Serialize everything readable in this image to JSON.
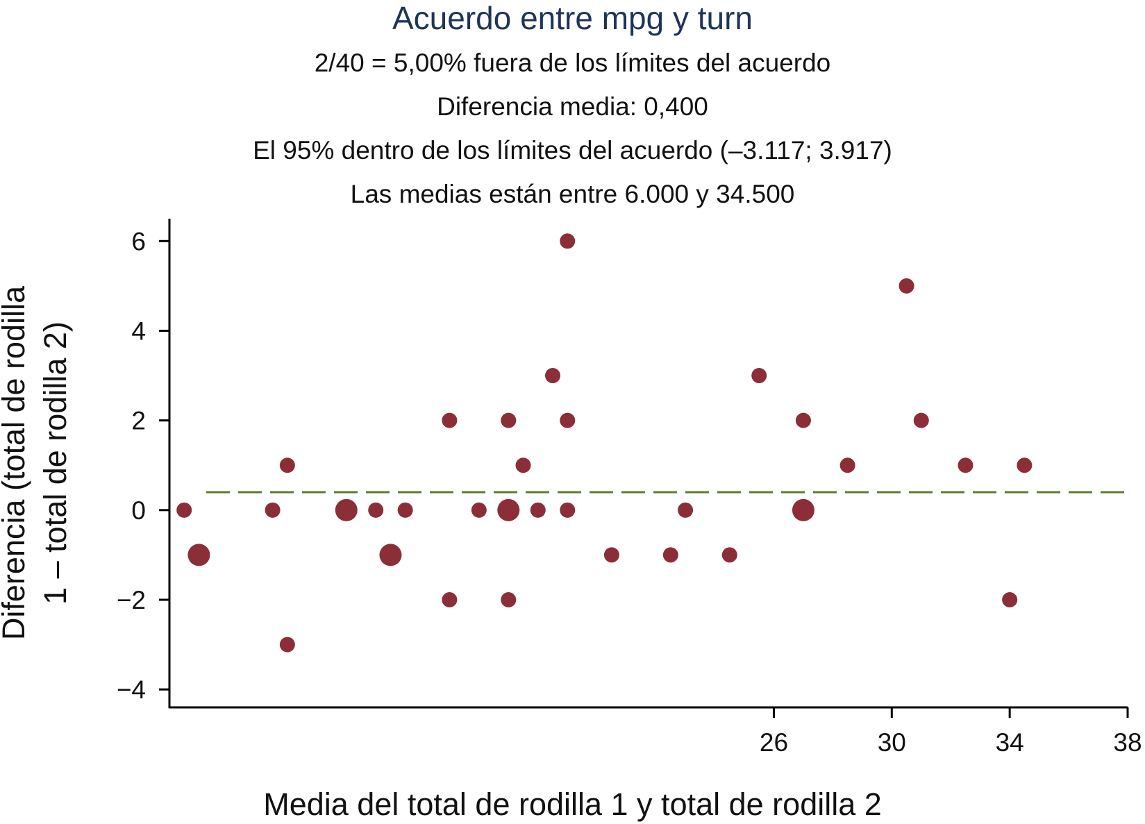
{
  "chart_data": {
    "type": "scatter",
    "title": "Acuerdo entre mpg y turn",
    "subtitles": [
      "2/40 = 5,00% fuera de los límites del acuerdo",
      "Diferencia media: 0,400",
      "El 95% dentro de los límites del acuerdo (–3.117; 3.917)",
      "Las medias están entre 6.000 y 34.500"
    ],
    "xlabel": "Media del total de rodilla 1 y total de rodilla 2",
    "ylabel_lines": [
      "Diferencia (total de rodilla",
      "1 – total de rodilla 2)"
    ],
    "xlim": [
      5.5,
      38
    ],
    "ylim": [
      -4.4,
      6.5
    ],
    "xticks": [
      26,
      30,
      34,
      38
    ],
    "xtick_labels": [
      "26",
      "30",
      "34",
      "38"
    ],
    "yticks": [
      6,
      4,
      2,
      0,
      -2,
      -4
    ],
    "ytick_labels": [
      "6",
      "4",
      "2",
      "0",
      "−2",
      "−4"
    ],
    "mean_difference": 0.4,
    "grid": false,
    "marker_color": "#8b2e38",
    "mean_line_color": "#5a7d2a",
    "points": [
      {
        "x": 6.0,
        "y": 0,
        "n": 1
      },
      {
        "x": 6.5,
        "y": -1,
        "n": 2
      },
      {
        "x": 9.0,
        "y": 0,
        "n": 1
      },
      {
        "x": 9.5,
        "y": 1,
        "n": 1
      },
      {
        "x": 9.5,
        "y": -3,
        "n": 1
      },
      {
        "x": 11.5,
        "y": 0,
        "n": 2
      },
      {
        "x": 12.5,
        "y": 0,
        "n": 1
      },
      {
        "x": 13.0,
        "y": -1,
        "n": 2
      },
      {
        "x": 13.5,
        "y": 0,
        "n": 1
      },
      {
        "x": 15.0,
        "y": 2,
        "n": 1
      },
      {
        "x": 15.0,
        "y": -2,
        "n": 1
      },
      {
        "x": 16.0,
        "y": 0,
        "n": 1
      },
      {
        "x": 17.0,
        "y": 2,
        "n": 1
      },
      {
        "x": 17.0,
        "y": 0,
        "n": 2
      },
      {
        "x": 17.0,
        "y": -2,
        "n": 1
      },
      {
        "x": 17.5,
        "y": 1,
        "n": 1
      },
      {
        "x": 18.0,
        "y": 0,
        "n": 1
      },
      {
        "x": 18.5,
        "y": 3,
        "n": 1
      },
      {
        "x": 19.0,
        "y": 6,
        "n": 1
      },
      {
        "x": 19.0,
        "y": 2,
        "n": 1
      },
      {
        "x": 19.0,
        "y": 0,
        "n": 1
      },
      {
        "x": 20.5,
        "y": -1,
        "n": 1
      },
      {
        "x": 22.5,
        "y": -1,
        "n": 1
      },
      {
        "x": 23.0,
        "y": 0,
        "n": 1
      },
      {
        "x": 24.5,
        "y": -1,
        "n": 1
      },
      {
        "x": 25.5,
        "y": 3,
        "n": 1
      },
      {
        "x": 27.0,
        "y": 2,
        "n": 1
      },
      {
        "x": 27.0,
        "y": 0,
        "n": 2
      },
      {
        "x": 28.5,
        "y": 1,
        "n": 1
      },
      {
        "x": 30.5,
        "y": 5,
        "n": 1
      },
      {
        "x": 31.0,
        "y": 2,
        "n": 1
      },
      {
        "x": 32.5,
        "y": 1,
        "n": 1
      },
      {
        "x": 34.0,
        "y": -2,
        "n": 1
      },
      {
        "x": 34.5,
        "y": 1,
        "n": 1
      }
    ]
  }
}
